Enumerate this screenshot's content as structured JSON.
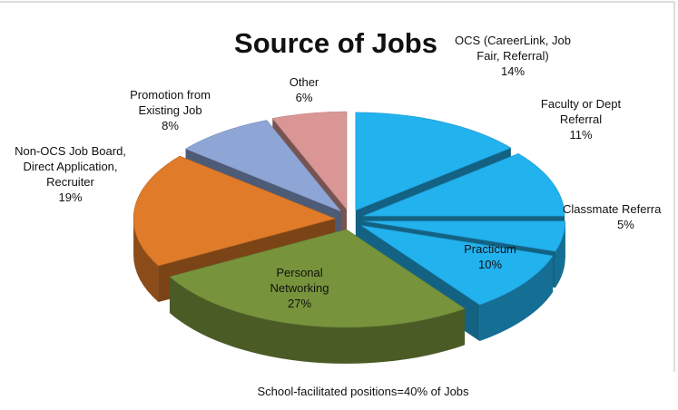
{
  "chart_data": {
    "type": "pie3d",
    "title": "Source of Jobs",
    "categories": [
      "OCS (CareerLink, Job Fair, Referral)",
      "Faculty or Dept Referral",
      "Classmate Referra",
      "Practicum",
      "Personal Networking",
      "Non-OCS Job Board, Direct Application, Recruiter",
      "Promotion from Existing Job",
      "Other"
    ],
    "values": [
      14,
      11,
      5,
      10,
      27,
      19,
      8,
      6
    ],
    "value_labels": [
      "14%",
      "11%",
      "5%",
      "10%",
      "27%",
      "19%",
      "8%",
      "6%"
    ],
    "colors": [
      "#22b2ee",
      "#22b2ee",
      "#22b2ee",
      "#22b2ee",
      "#77933c",
      "#e07b2a",
      "#8ea6d6",
      "#d99694"
    ],
    "annotation": "School-facilitated positions=40% of Jobs"
  }
}
